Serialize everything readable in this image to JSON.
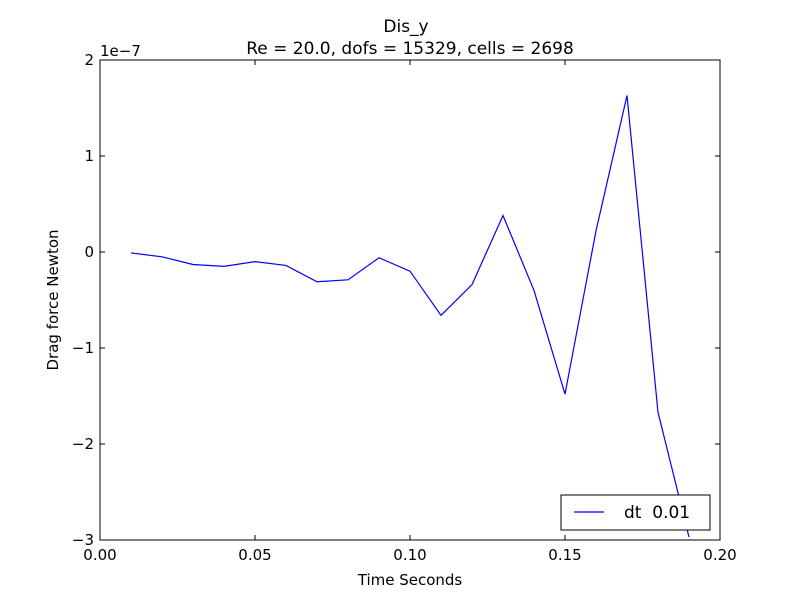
{
  "chart_data": {
    "type": "line",
    "title": "Dis_y",
    "subtitle": "Re = 20.0, dofs = 15329, cells = 2698",
    "xlabel": "Time Seconds",
    "ylabel": "Drag force Newton",
    "y_scale_label": "1e−7",
    "xlim": [
      0.0,
      0.2
    ],
    "ylim": [
      -3,
      2
    ],
    "xticks": [
      0.0,
      0.05,
      0.1,
      0.15,
      0.2
    ],
    "xtick_labels": [
      "0.00",
      "0.05",
      "0.10",
      "0.15",
      "0.20"
    ],
    "yticks": [
      -3,
      -2,
      -1,
      0,
      1,
      2
    ],
    "ytick_labels": [
      "−3",
      "−2",
      "−1",
      "0",
      "1",
      "2"
    ],
    "grid": false,
    "legend_position": "lower-right",
    "series": [
      {
        "name": "dt  0.01",
        "color": "#0000ff",
        "x": [
          0.01,
          0.02,
          0.03,
          0.04,
          0.05,
          0.06,
          0.07,
          0.08,
          0.09,
          0.1,
          0.11,
          0.12,
          0.13,
          0.14,
          0.15,
          0.16,
          0.17,
          0.18,
          0.19
        ],
        "y": [
          -0.01,
          -0.05,
          -0.13,
          -0.15,
          -0.1,
          -0.14,
          -0.31,
          -0.29,
          -0.06,
          -0.2,
          -0.66,
          -0.34,
          0.38,
          -0.4,
          -1.48,
          0.22,
          1.63,
          -1.67,
          -2.97
        ]
      }
    ]
  }
}
